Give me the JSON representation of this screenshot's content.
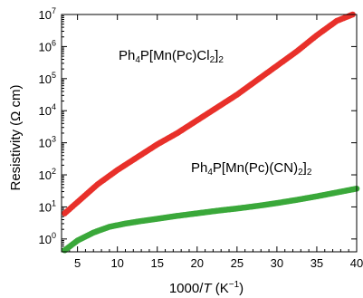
{
  "chart_data": {
    "type": "scatter",
    "x_label": {
      "prefix": "1000/",
      "var": "T",
      "unit": " (K",
      "exp": "−1",
      "suffix": ")"
    },
    "y_label": "Resistivity (Ω cm)",
    "xlim": [
      3,
      40
    ],
    "ylim_log10": [
      -0.4,
      7
    ],
    "y_scale": "log",
    "x_ticks": [
      5,
      10,
      15,
      20,
      25,
      30,
      35,
      40
    ],
    "x_tick_labels": [
      "5",
      "10",
      "15",
      "20",
      "25",
      "30",
      "35",
      "40"
    ],
    "y_tick_exponents": [
      0,
      1,
      2,
      3,
      4,
      5,
      6,
      7
    ],
    "y_tick_base": "10",
    "grid": false,
    "series": [
      {
        "color": "#e8302a",
        "annotation": {
          "parts": [
            "Ph",
            "4",
            "P[Mn(Pc)Cl",
            "2",
            "]",
            "2"
          ]
        },
        "x": [
          3.4,
          5,
          7.5,
          10,
          12.5,
          15,
          17.5,
          20,
          22.5,
          25,
          27.5,
          30,
          32.5,
          35,
          37.5,
          39.5
        ],
        "y_log10": [
          0.8,
          1.15,
          1.7,
          2.15,
          2.55,
          2.95,
          3.3,
          3.7,
          4.1,
          4.5,
          4.95,
          5.4,
          5.85,
          6.35,
          6.8,
          7.0
        ]
      },
      {
        "color": "#3aa83a",
        "annotation": {
          "parts": [
            "Ph",
            "4",
            "P[Mn(Pc)(CN)",
            "2",
            "]",
            "2"
          ]
        },
        "x": [
          3.4,
          5,
          7,
          9,
          11,
          13,
          15,
          17.5,
          20,
          22.5,
          25,
          27.5,
          30,
          32.5,
          35,
          37.5,
          40
        ],
        "y_log10": [
          -0.35,
          -0.05,
          0.2,
          0.38,
          0.48,
          0.56,
          0.63,
          0.72,
          0.8,
          0.88,
          0.95,
          1.03,
          1.12,
          1.22,
          1.33,
          1.45,
          1.57
        ]
      }
    ]
  }
}
